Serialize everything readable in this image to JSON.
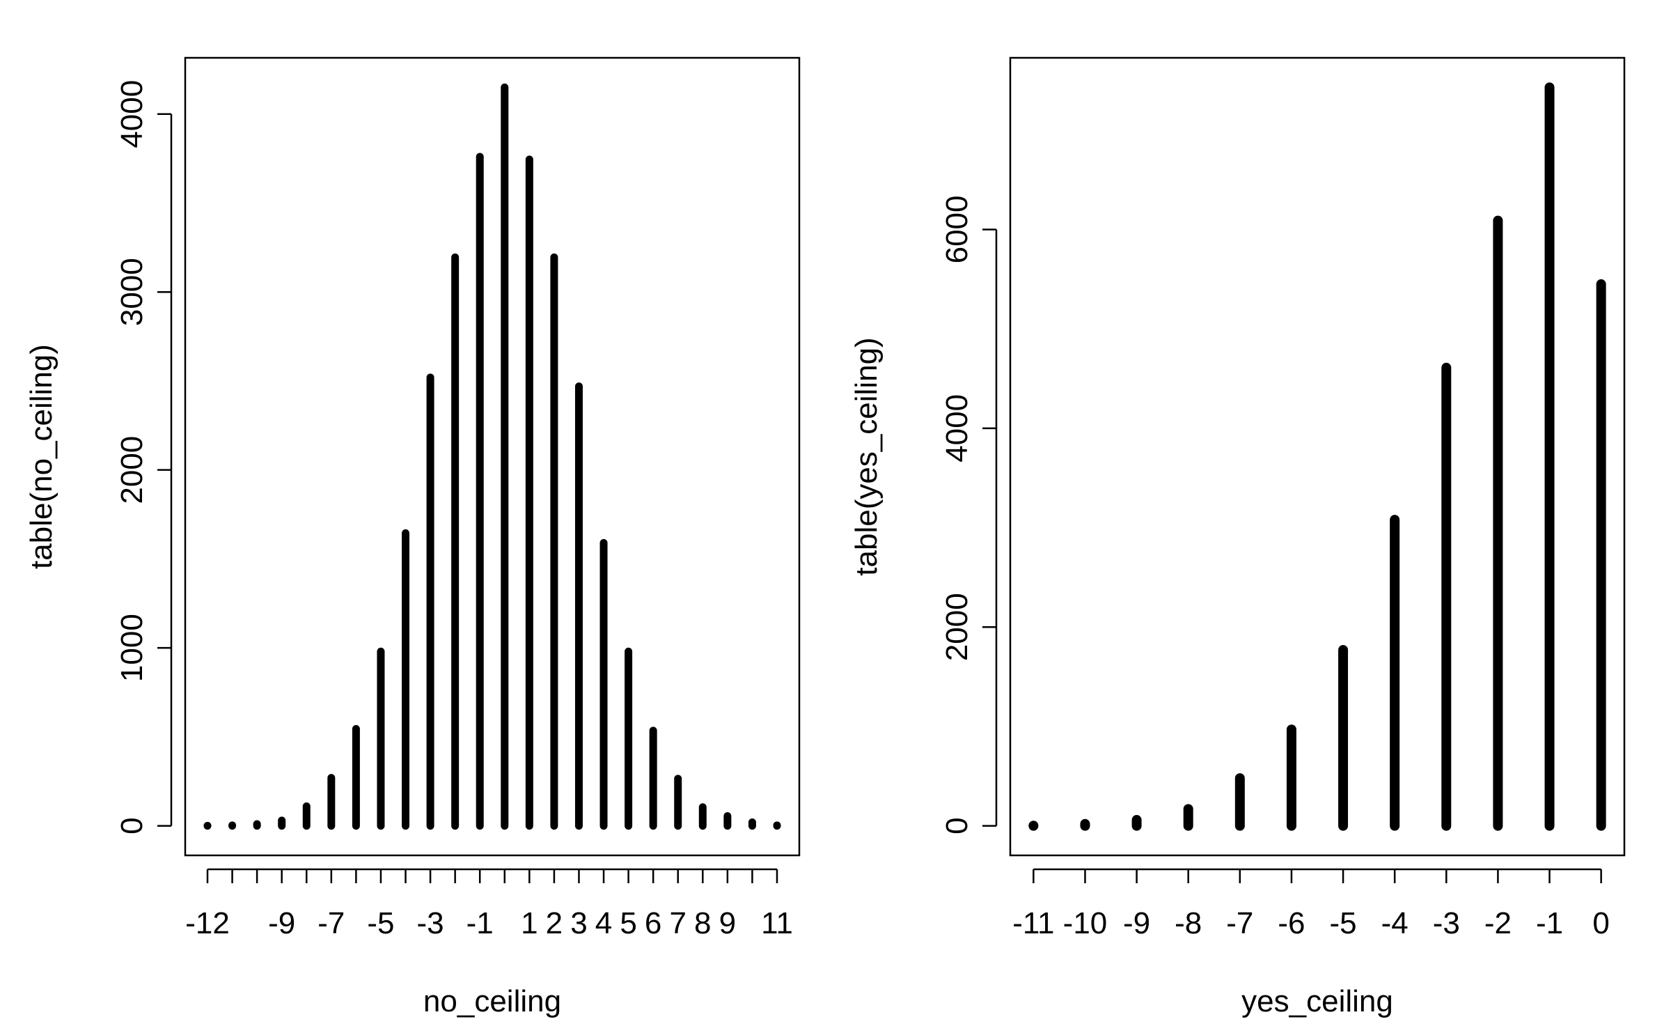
{
  "chart_data": [
    {
      "type": "bar",
      "style": "histogram-lines",
      "xlabel": "no_ceiling",
      "ylabel": "table(no_ceiling)",
      "x": [
        -12,
        -11,
        -10,
        -9,
        -8,
        -7,
        -6,
        -5,
        -4,
        -3,
        -2,
        -1,
        0,
        1,
        2,
        3,
        4,
        5,
        6,
        7,
        8,
        9,
        10,
        11
      ],
      "values": [
        1,
        3,
        10,
        30,
        110,
        270,
        545,
        980,
        1645,
        2520,
        3195,
        3760,
        4150,
        3745,
        3195,
        2470,
        1590,
        980,
        535,
        265,
        105,
        55,
        20,
        3
      ],
      "x_tick_labels": [
        "-12",
        "-9",
        "-7",
        "-5",
        "-3",
        "-1",
        "1",
        "2",
        "3",
        "4",
        "5",
        "6",
        "7",
        "8",
        "9",
        "11"
      ],
      "x_tick_label_values": [
        -12,
        -9,
        -7,
        -5,
        -3,
        -1,
        1,
        2,
        3,
        4,
        5,
        6,
        7,
        8,
        9,
        11
      ],
      "y_ticks": [
        0,
        1000,
        2000,
        3000,
        4000
      ],
      "y_tick_labels": [
        "0",
        "1000",
        "2000",
        "3000",
        "4000"
      ],
      "xlim": [
        -12.9,
        11.9
      ],
      "ylim": [
        -166,
        4316
      ],
      "grid": false,
      "color": "#000000"
    },
    {
      "type": "bar",
      "style": "histogram-lines",
      "xlabel": "yes_ceiling",
      "ylabel": "table(yes_ceiling)",
      "x": [
        -11,
        -10,
        -9,
        -8,
        -7,
        -6,
        -5,
        -4,
        -3,
        -2,
        -1,
        0
      ],
      "values": [
        3,
        20,
        60,
        170,
        480,
        970,
        1770,
        3080,
        4610,
        6090,
        7430,
        5450
      ],
      "x_tick_labels": [
        "-11",
        "-10",
        "-9",
        "-8",
        "-7",
        "-6",
        "-5",
        "-4",
        "-3",
        "-2",
        "-1",
        "0"
      ],
      "x_tick_label_values": [
        -11,
        -10,
        -9,
        -8,
        -7,
        -6,
        -5,
        -4,
        -3,
        -2,
        -1,
        0
      ],
      "y_ticks": [
        0,
        2000,
        4000,
        6000
      ],
      "y_tick_labels": [
        "0",
        "2000",
        "4000",
        "6000"
      ],
      "xlim": [
        -11.45,
        0.45
      ],
      "ylim": [
        -297,
        7727
      ],
      "grid": false,
      "color": "#000000"
    }
  ]
}
